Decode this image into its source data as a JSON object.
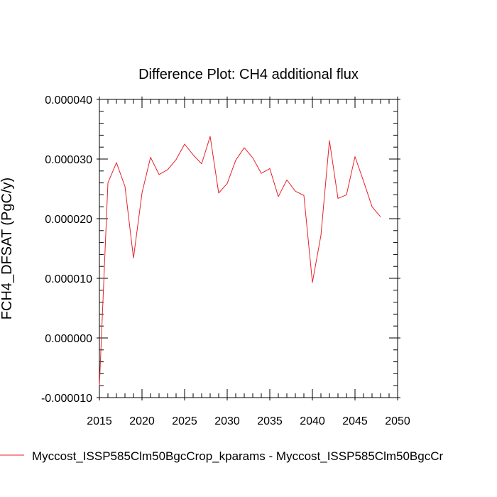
{
  "chart_data": {
    "type": "line",
    "title": "Difference Plot: CH4 additional flux",
    "xlabel": "",
    "ylabel": "FCH4_DFSAT (PgC/y)",
    "xlim": [
      2015,
      2050
    ],
    "ylim": [
      -1e-05,
      4e-05
    ],
    "x_ticks": [
      2015,
      2020,
      2025,
      2030,
      2035,
      2040,
      2045,
      2050
    ],
    "x_tick_labels": [
      "2015",
      "2020",
      "2025",
      "2030",
      "2035",
      "2040",
      "2045",
      "2050"
    ],
    "y_ticks": [
      -1e-05,
      0,
      1e-05,
      2e-05,
      3e-05,
      4e-05
    ],
    "y_tick_labels": [
      "-0.000010",
      "0.000000",
      "0.000010",
      "0.000020",
      "0.000030",
      "0.000040"
    ],
    "grid": false,
    "legend_position": "bottom",
    "series": [
      {
        "name": "Myccost_ISSP585Clm50BgcCrop_kparams - Myccost_ISSP585Clm50BgcCr",
        "color": "#e8202a",
        "x": [
          2015,
          2016,
          2017,
          2018,
          2019,
          2020,
          2021,
          2022,
          2023,
          2024,
          2025,
          2026,
          2027,
          2028,
          2029,
          2030,
          2031,
          2032,
          2033,
          2034,
          2035,
          2036,
          2037,
          2038,
          2039,
          2040,
          2041,
          2042,
          2043,
          2044,
          2045,
          2046,
          2047,
          2048
        ],
        "values": [
          -8e-06,
          2.6e-05,
          2.94e-05,
          2.54e-05,
          1.34e-05,
          2.43e-05,
          3.03e-05,
          2.74e-05,
          2.82e-05,
          2.99e-05,
          3.25e-05,
          3.07e-05,
          2.92e-05,
          3.38e-05,
          2.43e-05,
          2.59e-05,
          2.98e-05,
          3.19e-05,
          3.02e-05,
          2.76e-05,
          2.84e-05,
          2.37e-05,
          2.65e-05,
          2.46e-05,
          2.39e-05,
          9.3e-06,
          1.72e-05,
          3.31e-05,
          2.34e-05,
          2.4e-05,
          3.04e-05,
          2.63e-05,
          2.2e-05,
          2.03e-05
        ]
      }
    ]
  }
}
